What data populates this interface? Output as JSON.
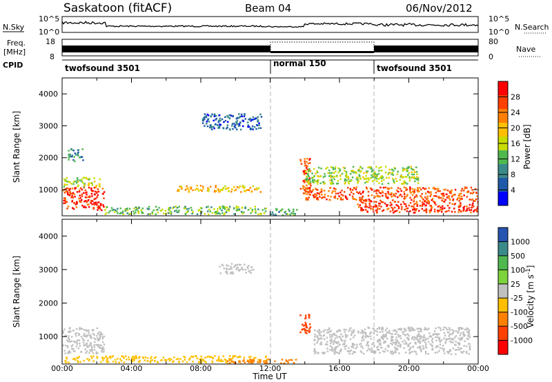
{
  "header": {
    "station": "Saskatoon (fitACF)",
    "beam": "Beam 04",
    "date": "06/Nov/2012"
  },
  "panels": {
    "nsky": {
      "label": "N.Sky",
      "left_ticks": [
        "10^5",
        "10^0"
      ],
      "right_ticks": [
        "10^5",
        "10^0"
      ],
      "right_label": "N.Search"
    },
    "freq": {
      "label_line1": "Freq.",
      "label_line2": "[MHz]",
      "left_ticks": [
        "18",
        "8"
      ],
      "right_ticks": [
        "80",
        "0"
      ],
      "right_label": "Nave"
    },
    "cpid": {
      "label": "CPID",
      "segments": [
        "twofsound 3501",
        "normal 150",
        "twofsound 3501"
      ]
    }
  },
  "power_panel": {
    "ylabel": "Slant Range [km]",
    "yticks": [
      "4000",
      "3000",
      "2000",
      "1000"
    ],
    "colorbar_label": "Power [dB]",
    "colorbar_ticks": [
      "28",
      "24",
      "20",
      "16",
      "12",
      "8",
      "4"
    ],
    "colors": [
      "#ff0000",
      "#ff4000",
      "#ff8000",
      "#ffbf00",
      "#c8dc00",
      "#4fb84f",
      "#3a8a8a",
      "#1f5aa8",
      "#0000ff"
    ]
  },
  "velocity_panel": {
    "ylabel": "Slant Range [km]",
    "yticks": [
      "4000",
      "3000",
      "2000",
      "1000"
    ],
    "colorbar_label": "Velocity [m s^-1]",
    "colorbar_ticks": [
      "1000",
      "500",
      "100",
      "25",
      "-25",
      "-100",
      "-500",
      "-1000"
    ],
    "colors": [
      "#2555b0",
      "#3a8a8a",
      "#4fb84f",
      "#7cd33c",
      "#c0c0c0",
      "#ffbf00",
      "#ff8000",
      "#ff4000",
      "#ff0000"
    ]
  },
  "x_axis": {
    "label": "Time UT",
    "ticks": [
      "00:00",
      "04:00",
      "08:00",
      "12:00",
      "16:00",
      "20:00",
      "00:00"
    ]
  },
  "chart_data": {
    "type": "heatmap",
    "title": "Saskatoon (fitACF) Beam 04 06/Nov/2012",
    "xlabel": "Time UT",
    "ylabel": "Slant Range [km]",
    "xlim_hours": [
      0,
      24
    ],
    "ylim_km": [
      180,
      4500
    ],
    "mode_changes_hours": [
      12,
      18
    ],
    "power_db": {
      "range": [
        0,
        30
      ],
      "scatter_regions": [
        {
          "t0": 0.0,
          "t1": 2.4,
          "r0": 380,
          "r1": 1100,
          "value": 26
        },
        {
          "t0": 0.0,
          "t1": 2.2,
          "r0": 1100,
          "r1": 1400,
          "value": 15
        },
        {
          "t0": 0.3,
          "t1": 1.2,
          "r0": 1900,
          "r1": 2300,
          "value": 8
        },
        {
          "t0": 2.4,
          "t1": 11.8,
          "r0": 250,
          "r1": 500,
          "value": 12
        },
        {
          "t0": 6.5,
          "t1": 11.5,
          "r0": 950,
          "r1": 1150,
          "value": 18
        },
        {
          "t0": 8.0,
          "t1": 11.5,
          "r0": 2900,
          "r1": 3400,
          "value": 6
        },
        {
          "t0": 12.0,
          "t1": 13.5,
          "r0": 200,
          "r1": 450,
          "value": 10
        },
        {
          "t0": 13.7,
          "t1": 14.3,
          "r0": 900,
          "r1": 2000,
          "value": 24
        },
        {
          "t0": 14.0,
          "t1": 24.0,
          "r0": 700,
          "r1": 1100,
          "value": 24
        },
        {
          "t0": 14.0,
          "t1": 20.5,
          "r0": 1200,
          "r1": 1750,
          "value": 14
        },
        {
          "t0": 17.0,
          "t1": 24.0,
          "r0": 300,
          "r1": 700,
          "value": 26
        }
      ]
    },
    "velocity_ms": {
      "range": [
        -1000,
        1000
      ],
      "scatter_regions": [
        {
          "t0": 0.0,
          "t1": 2.4,
          "r0": 500,
          "r1": 1300,
          "value": 0
        },
        {
          "t0": 0.0,
          "t1": 11.8,
          "r0": 250,
          "r1": 450,
          "value": -80
        },
        {
          "t0": 9.5,
          "t1": 13.5,
          "r0": 180,
          "r1": 350,
          "value": -300
        },
        {
          "t0": 13.7,
          "t1": 14.3,
          "r0": 1100,
          "r1": 1700,
          "value": -600
        },
        {
          "t0": 14.5,
          "t1": 23.5,
          "r0": 500,
          "r1": 1300,
          "value": 0
        },
        {
          "t0": 9.0,
          "t1": 11.0,
          "r0": 2900,
          "r1": 3200,
          "value": 0
        }
      ]
    }
  }
}
